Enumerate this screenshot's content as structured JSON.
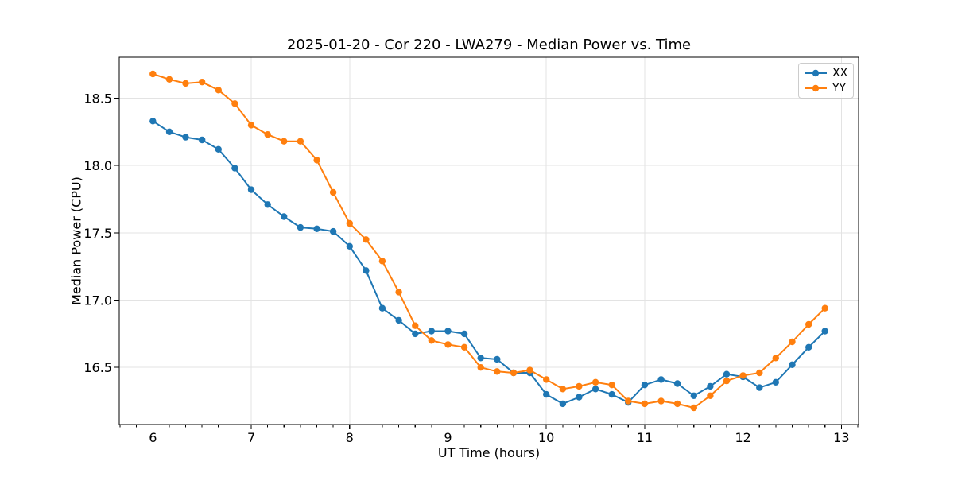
{
  "chart_data": {
    "type": "line",
    "title": "2025-01-20 - Cor 220 - LWA279 - Median Power vs. Time",
    "xlabel": "UT Time (hours)",
    "ylabel": "Median Power (CPU)",
    "xlim": [
      5.658,
      13.175
    ],
    "ylim": [
      16.076,
      18.804
    ],
    "x_ticks": [
      6,
      7,
      8,
      9,
      10,
      11,
      12,
      13
    ],
    "y_ticks": [
      16.5,
      17.0,
      17.5,
      18.0,
      18.5
    ],
    "minor_ticks_per_hour": 6,
    "grid": true,
    "grid_color": "#e3e3e3",
    "spine_color": "#000000",
    "legend_position": "upper right",
    "x": [
      6.0,
      6.167,
      6.333,
      6.5,
      6.667,
      6.833,
      7.0,
      7.167,
      7.333,
      7.5,
      7.667,
      7.833,
      8.0,
      8.167,
      8.333,
      8.5,
      8.667,
      8.833,
      9.0,
      9.167,
      9.333,
      9.5,
      9.667,
      9.833,
      10.0,
      10.167,
      10.333,
      10.5,
      10.667,
      10.833,
      11.0,
      11.167,
      11.333,
      11.5,
      11.667,
      11.833,
      12.0,
      12.167,
      12.333,
      12.5,
      12.667,
      12.833
    ],
    "series": [
      {
        "name": "XX",
        "color": "#1f77b4",
        "marker": "circle",
        "values": [
          18.33,
          18.25,
          18.21,
          18.19,
          18.12,
          17.98,
          17.82,
          17.71,
          17.62,
          17.54,
          17.53,
          17.51,
          17.4,
          17.22,
          16.94,
          16.85,
          16.75,
          16.77,
          16.77,
          16.75,
          16.57,
          16.56,
          16.46,
          16.46,
          16.3,
          16.23,
          16.28,
          16.34,
          16.3,
          16.24,
          16.37,
          16.41,
          16.38,
          16.29,
          16.36,
          16.45,
          16.43,
          16.35,
          16.39,
          16.52,
          16.65,
          16.77
        ]
      },
      {
        "name": "YY",
        "color": "#ff7f0e",
        "marker": "circle",
        "values": [
          18.68,
          18.64,
          18.61,
          18.62,
          18.56,
          18.46,
          18.3,
          18.23,
          18.18,
          18.18,
          18.04,
          17.8,
          17.57,
          17.45,
          17.29,
          17.06,
          16.81,
          16.7,
          16.67,
          16.65,
          16.5,
          16.47,
          16.46,
          16.48,
          16.41,
          16.34,
          16.36,
          16.39,
          16.37,
          16.25,
          16.23,
          16.25,
          16.23,
          16.2,
          16.29,
          16.4,
          16.44,
          16.46,
          16.57,
          16.69,
          16.82,
          16.94
        ]
      }
    ]
  }
}
